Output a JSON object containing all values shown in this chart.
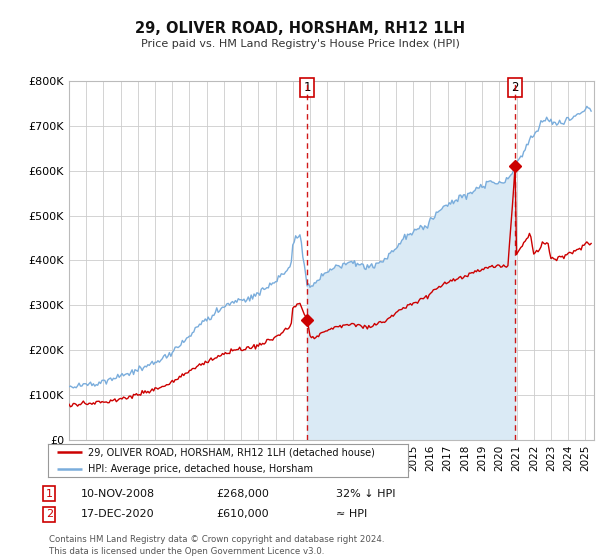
{
  "title": "29, OLIVER ROAD, HORSHAM, RH12 1LH",
  "subtitle": "Price paid vs. HM Land Registry's House Price Index (HPI)",
  "ylim": [
    0,
    800000
  ],
  "yticks": [
    0,
    100000,
    200000,
    300000,
    400000,
    500000,
    600000,
    700000,
    800000
  ],
  "hpi_color": "#7aaddc",
  "hpi_fill_color": "#daeaf5",
  "price_color": "#cc0000",
  "annotation1": {
    "label": "1",
    "date_t": 2008.833,
    "price": 268000
  },
  "annotation2": {
    "label": "2",
    "date_t": 2020.917,
    "price": 610000
  },
  "legend_line1": "29, OLIVER ROAD, HORSHAM, RH12 1LH (detached house)",
  "legend_line2": "HPI: Average price, detached house, Horsham",
  "table_row1": [
    "1",
    "10-NOV-2008",
    "£268,000",
    "32% ↓ HPI"
  ],
  "table_row2": [
    "2",
    "17-DEC-2020",
    "£610,000",
    "≈ HPI"
  ],
  "footnote": "Contains HM Land Registry data © Crown copyright and database right 2024.\nThis data is licensed under the Open Government Licence v3.0.",
  "background_color": "#ffffff",
  "grid_color": "#cccccc",
  "xlim_start": 1995.0,
  "xlim_end": 2025.5
}
